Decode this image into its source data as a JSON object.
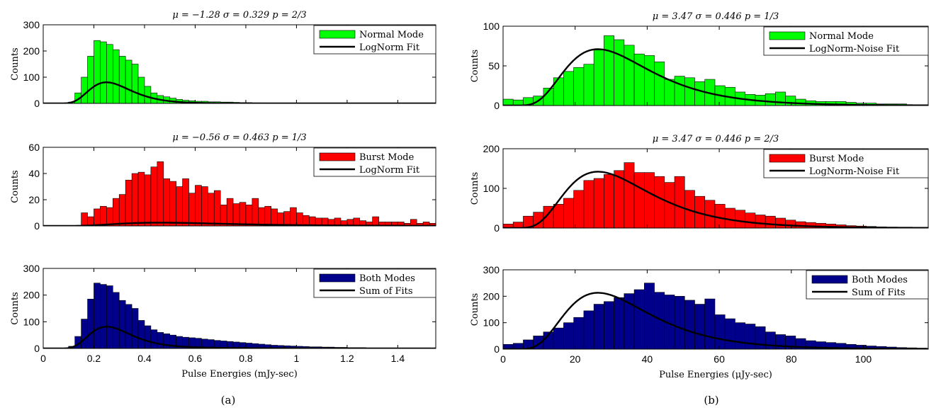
{
  "figure": {
    "caption_a": "(a)",
    "caption_b": "(b)"
  },
  "colors": {
    "normal": "#00ff00",
    "burst": "#ff0000",
    "both": "#00008b",
    "fit": "#000000"
  },
  "chart_data": [
    {
      "id": "a1",
      "type": "bar",
      "title": "μ = −1.28 σ = 0.329 p = 2/3",
      "ylabel": "Counts",
      "xlabel": "",
      "xlim": [
        0,
        1.55
      ],
      "ylim": [
        0,
        300
      ],
      "yticks": [
        0,
        100,
        200,
        300
      ],
      "xticks": [],
      "bin_start": 0.1,
      "bin_width": 0.025,
      "values": [
        5,
        40,
        100,
        180,
        240,
        235,
        225,
        205,
        180,
        165,
        150,
        100,
        65,
        40,
        30,
        25,
        20,
        15,
        12,
        10,
        8,
        8,
        6,
        6,
        5,
        5,
        4,
        3,
        3,
        2,
        2
      ],
      "fit": {
        "type": "lognormal",
        "mu": -1.28,
        "sigma": 0.329,
        "scale": 17.5
      },
      "legend": [
        "Normal Mode",
        "LogNorm Fit"
      ],
      "legend_position": "top-right",
      "color": "#00ff00"
    },
    {
      "id": "a2",
      "type": "bar",
      "title": "μ = −0.56 σ = 0.463 p = 1/3",
      "ylabel": "Counts",
      "xlabel": "",
      "xlim": [
        0,
        1.55
      ],
      "ylim": [
        0,
        60
      ],
      "yticks": [
        0,
        20,
        40,
        60
      ],
      "xticks": [],
      "bin_start": 0.15,
      "bin_width": 0.025,
      "values": [
        10,
        7,
        13,
        15,
        14,
        21,
        24,
        35,
        40,
        41,
        39,
        45,
        49,
        36,
        34,
        30,
        36,
        25,
        31,
        30,
        25,
        27,
        16,
        21,
        17,
        18,
        16,
        21,
        14,
        15,
        13,
        10,
        11,
        14,
        10,
        8,
        7,
        6,
        6,
        5,
        6,
        4,
        5,
        6,
        4,
        3,
        7,
        3,
        3,
        3,
        3,
        2,
        5,
        2,
        3,
        2
      ],
      "fit": {
        "type": "lognormal",
        "mu": -0.56,
        "sigma": 0.463,
        "scale": 1.48
      },
      "legend": [
        "Burst Mode",
        "LogNorm Fit"
      ],
      "legend_position": "top-right",
      "color": "#ff0000"
    },
    {
      "id": "a3",
      "type": "bar",
      "title": "",
      "ylabel": "Counts",
      "xlabel": "Pulse Energies (mJy-sec)",
      "xlim": [
        0,
        1.55
      ],
      "ylim": [
        0,
        300
      ],
      "yticks": [
        0,
        100,
        200,
        300
      ],
      "xticks": [
        0,
        0.2,
        0.4,
        0.6,
        0.8,
        1,
        1.2,
        1.4
      ],
      "bin_start": 0.1,
      "bin_width": 0.025,
      "values": [
        8,
        45,
        110,
        185,
        245,
        240,
        235,
        210,
        180,
        165,
        150,
        105,
        85,
        70,
        60,
        55,
        50,
        45,
        42,
        40,
        38,
        35,
        33,
        30,
        28,
        26,
        24,
        22,
        20,
        18,
        16,
        14,
        12,
        11,
        10,
        9,
        8,
        7,
        6,
        6,
        5,
        5,
        4,
        4,
        3,
        3,
        3,
        2,
        2,
        2,
        2,
        2,
        1,
        1,
        1,
        1,
        1,
        1
      ],
      "fit": {
        "type": "lognormal-sum",
        "components": [
          {
            "mu": -1.28,
            "sigma": 0.329,
            "scale": 17.5
          },
          {
            "mu": -0.56,
            "sigma": 0.463,
            "scale": 1.48
          }
        ]
      },
      "legend": [
        "Both Modes",
        "Sum of Fits"
      ],
      "legend_position": "top-right",
      "color": "#00008b"
    },
    {
      "id": "b1",
      "type": "bar",
      "title": "μ = 3.47 σ = 0.446 p = 1/3",
      "ylabel": "Counts",
      "xlabel": "",
      "xlim": [
        0,
        118
      ],
      "ylim": [
        0,
        100
      ],
      "yticks": [
        0,
        50,
        100
      ],
      "xticks": [],
      "bin_start": 0,
      "bin_width": 2.8,
      "values": [
        8,
        7,
        10,
        12,
        22,
        35,
        43,
        48,
        52,
        70,
        88,
        83,
        76,
        65,
        63,
        55,
        33,
        37,
        35,
        30,
        33,
        25,
        23,
        17,
        14,
        13,
        15,
        17,
        12,
        8,
        6,
        5,
        5,
        5,
        4,
        3,
        3,
        2,
        2,
        2,
        1,
        1
      ],
      "fit": {
        "type": "lognormal",
        "mu": 3.47,
        "sigma": 0.446,
        "scale": 2310
      },
      "legend": [
        "Normal Mode",
        "LogNorm-Noise Fit"
      ],
      "legend_position": "top-right",
      "color": "#00ff00"
    },
    {
      "id": "b2",
      "type": "bar",
      "title": "μ = 3.47 σ = 0.446 p = 2/3",
      "ylabel": "Counts",
      "xlabel": "",
      "xlim": [
        0,
        118
      ],
      "ylim": [
        0,
        200
      ],
      "yticks": [
        0,
        100,
        200
      ],
      "xticks": [],
      "bin_start": 0,
      "bin_width": 2.8,
      "values": [
        10,
        15,
        30,
        40,
        55,
        60,
        75,
        95,
        120,
        125,
        135,
        145,
        165,
        140,
        140,
        130,
        115,
        130,
        95,
        80,
        70,
        60,
        50,
        45,
        38,
        33,
        30,
        25,
        20,
        16,
        14,
        12,
        10,
        8,
        6,
        5,
        4,
        3,
        2,
        2,
        2,
        1
      ],
      "fit": {
        "type": "lognormal",
        "mu": 3.47,
        "sigma": 0.446,
        "scale": 4620
      },
      "legend": [
        "Burst Mode",
        "LogNorm-Noise Fit"
      ],
      "legend_position": "top-right",
      "color": "#ff0000"
    },
    {
      "id": "b3",
      "type": "bar",
      "title": "",
      "ylabel": "Counts",
      "xlabel": "Pulse Energies (μJy-sec)",
      "xlim": [
        0,
        118
      ],
      "ylim": [
        0,
        300
      ],
      "yticks": [
        0,
        100,
        200,
        300
      ],
      "xticks": [
        0,
        20,
        40,
        60,
        80,
        100
      ],
      "bin_start": 0,
      "bin_width": 2.8,
      "values": [
        18,
        22,
        35,
        50,
        65,
        80,
        100,
        120,
        145,
        170,
        180,
        195,
        210,
        225,
        250,
        215,
        205,
        200,
        185,
        170,
        190,
        130,
        115,
        100,
        95,
        85,
        65,
        55,
        50,
        40,
        32,
        28,
        25,
        22,
        18,
        15,
        12,
        10,
        8,
        6,
        5,
        4
      ],
      "fit": {
        "type": "lognormal",
        "mu": 3.47,
        "sigma": 0.446,
        "scale": 6930
      },
      "legend": [
        "Both Modes",
        "Sum of Fits"
      ],
      "legend_position": "top-right",
      "color": "#00008b"
    }
  ]
}
